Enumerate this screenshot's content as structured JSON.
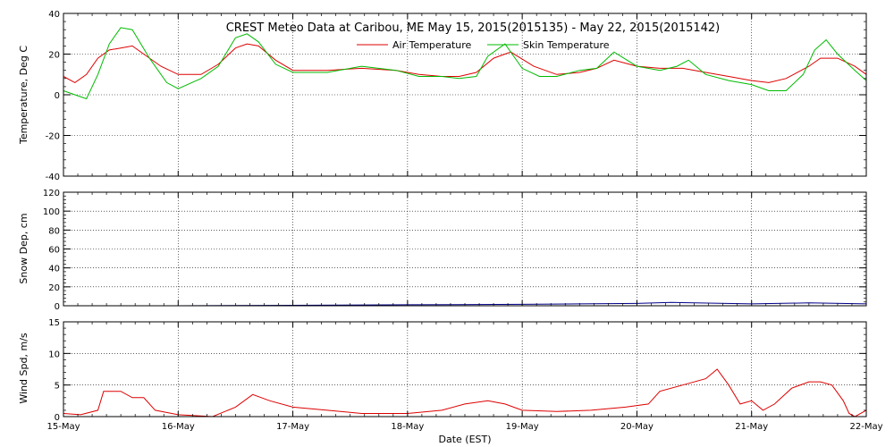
{
  "title": "CREST Meteo Data at Caribou, ME   May 15, 2015(2015135) - May 22, 2015(2015142)",
  "xlabel": "Date (EST)",
  "x_ticks": [
    "15-May",
    "16-May",
    "17-May",
    "18-May",
    "19-May",
    "20-May",
    "21-May",
    "22-May"
  ],
  "chart_data": [
    {
      "type": "line",
      "ylabel": "Temperature, Deg C",
      "ylim": [
        -40,
        40
      ],
      "y_ticks": [
        -40,
        -20,
        0,
        20,
        40
      ],
      "x_unit": "days since 15-May 00:00",
      "xlim": [
        0,
        7
      ],
      "grid": true,
      "legend_placement": "top-center",
      "series": [
        {
          "name": "Air Temperature",
          "color": "#dd0000",
          "x": [
            0,
            0.1,
            0.2,
            0.3,
            0.4,
            0.5,
            0.6,
            0.7,
            0.85,
            1.0,
            1.2,
            1.35,
            1.5,
            1.6,
            1.7,
            1.85,
            2.0,
            2.3,
            2.6,
            2.9,
            3.1,
            3.3,
            3.45,
            3.6,
            3.75,
            3.9,
            4.1,
            4.3,
            4.5,
            4.65,
            4.8,
            5.0,
            5.2,
            5.4,
            5.6,
            5.8,
            6.0,
            6.15,
            6.3,
            6.5,
            6.6,
            6.75,
            6.9,
            7.0
          ],
          "values": [
            9,
            6,
            10,
            18,
            22,
            23,
            24,
            20,
            14,
            10,
            10,
            15,
            23,
            25,
            24,
            17,
            12,
            12,
            13,
            12,
            10,
            9,
            9,
            11,
            18,
            21,
            14,
            10,
            11,
            13,
            17,
            14,
            13,
            13,
            11,
            9,
            7,
            6,
            8,
            14,
            18,
            18,
            14,
            10
          ]
        },
        {
          "name": "Skin Temperature",
          "color": "#00bb00",
          "x": [
            0,
            0.1,
            0.2,
            0.3,
            0.4,
            0.5,
            0.6,
            0.75,
            0.9,
            1.0,
            1.2,
            1.35,
            1.5,
            1.6,
            1.7,
            1.85,
            2.0,
            2.3,
            2.6,
            2.9,
            3.1,
            3.3,
            3.45,
            3.6,
            3.7,
            3.85,
            4.0,
            4.15,
            4.3,
            4.5,
            4.65,
            4.8,
            5.0,
            5.2,
            5.35,
            5.45,
            5.6,
            5.8,
            6.0,
            6.15,
            6.3,
            6.45,
            6.55,
            6.65,
            6.75,
            6.9,
            7.0
          ],
          "values": [
            2,
            0,
            -2,
            10,
            25,
            33,
            32,
            18,
            6,
            3,
            8,
            14,
            28,
            30,
            26,
            15,
            11,
            11,
            14,
            12,
            9,
            9,
            8,
            9,
            19,
            25,
            13,
            9,
            9,
            12,
            13,
            21,
            14,
            12,
            14,
            17,
            10,
            7,
            5,
            2,
            2,
            10,
            22,
            27,
            20,
            12,
            7
          ]
        }
      ]
    },
    {
      "type": "line",
      "ylabel": "Snow Dep, cm",
      "ylim": [
        0,
        120
      ],
      "y_ticks": [
        0,
        20,
        40,
        60,
        80,
        100,
        120
      ],
      "x_unit": "days since 15-May 00:00",
      "xlim": [
        0,
        7
      ],
      "grid": true,
      "series": [
        {
          "name": "Snow Depth",
          "color": "#000088",
          "x": [
            0,
            1.0,
            2.0,
            3.0,
            4.0,
            4.5,
            5.0,
            5.3,
            5.5,
            6.0,
            6.5,
            7.0
          ],
          "values": [
            0,
            0,
            0.5,
            1,
            1.5,
            2,
            2.5,
            3.5,
            3,
            2,
            3,
            2
          ]
        }
      ]
    },
    {
      "type": "line",
      "ylabel": "Wind Spd, m/s",
      "ylim": [
        0,
        15
      ],
      "y_ticks": [
        0,
        5,
        10,
        15
      ],
      "x_unit": "days since 15-May 00:00",
      "xlim": [
        0,
        7
      ],
      "grid": true,
      "series": [
        {
          "name": "Wind Speed",
          "color": "#dd0000",
          "x": [
            0,
            0.15,
            0.3,
            0.35,
            0.5,
            0.6,
            0.7,
            0.8,
            1.0,
            1.3,
            1.5,
            1.65,
            1.8,
            2.0,
            2.3,
            2.6,
            3.0,
            3.3,
            3.5,
            3.7,
            3.85,
            4.0,
            4.3,
            4.6,
            4.9,
            5.1,
            5.2,
            5.4,
            5.6,
            5.7,
            5.8,
            5.9,
            6.0,
            6.1,
            6.2,
            6.35,
            6.5,
            6.6,
            6.7,
            6.8,
            6.85,
            6.9,
            7.0
          ],
          "values": [
            0.5,
            0.3,
            1,
            4,
            4,
            3,
            3,
            1,
            0.3,
            0,
            1.5,
            3.5,
            2.5,
            1.5,
            1,
            0.5,
            0.5,
            1,
            2,
            2.5,
            2,
            1,
            0.8,
            1,
            1.5,
            2,
            4,
            5,
            6,
            7.5,
            5,
            2,
            2.5,
            1,
            2,
            4.5,
            5.5,
            5.5,
            5,
            2.5,
            0.5,
            0,
            1
          ]
        }
      ]
    }
  ]
}
